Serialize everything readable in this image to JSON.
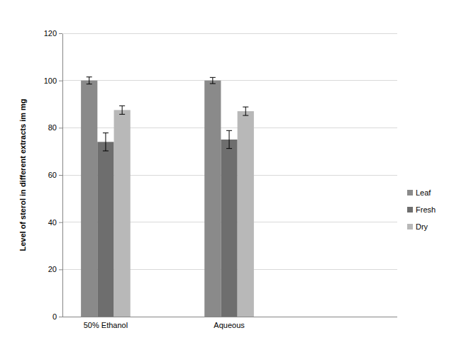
{
  "chart_data": {
    "type": "bar",
    "y_label": "Level of sterol in different extracts im mg",
    "categories": [
      "50% Ethanol",
      "Aqueous"
    ],
    "series": [
      {
        "name": "Leaf",
        "color": "#8a8a8a",
        "values": [
          100,
          100
        ],
        "errors": [
          1.5,
          1.3
        ]
      },
      {
        "name": "Fresh",
        "color": "#6e6e6e",
        "values": [
          74,
          75
        ],
        "errors": [
          3.8,
          3.8
        ]
      },
      {
        "name": "Dry",
        "color": "#b8b8b8",
        "values": [
          87.5,
          87
        ],
        "errors": [
          1.8,
          1.8
        ]
      }
    ],
    "ylim": [
      0,
      120
    ],
    "yticks": [
      0,
      20,
      40,
      60,
      80,
      100,
      120
    ],
    "grid": true,
    "legend": "right"
  }
}
